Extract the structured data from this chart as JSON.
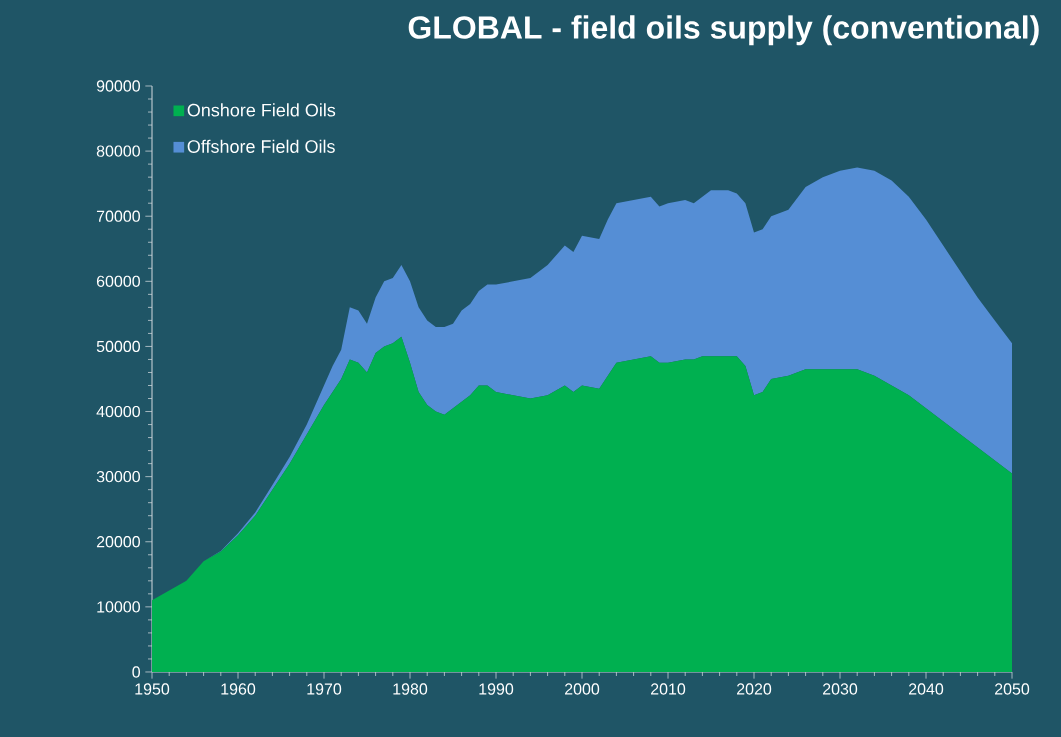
{
  "chart_data": {
    "type": "area",
    "stacked": true,
    "title": "GLOBAL - field oils supply (conventional)",
    "x": [
      1950,
      1952,
      1954,
      1956,
      1958,
      1960,
      1962,
      1964,
      1966,
      1968,
      1970,
      1971,
      1972,
      1973,
      1974,
      1975,
      1976,
      1977,
      1978,
      1979,
      1980,
      1981,
      1982,
      1983,
      1984,
      1985,
      1986,
      1987,
      1988,
      1989,
      1990,
      1992,
      1994,
      1996,
      1998,
      1999,
      2000,
      2002,
      2003,
      2004,
      2006,
      2008,
      2009,
      2010,
      2012,
      2013,
      2014,
      2015,
      2017,
      2018,
      2019,
      2020,
      2021,
      2022,
      2024,
      2026,
      2028,
      2030,
      2032,
      2034,
      2036,
      2038,
      2040,
      2042,
      2044,
      2046,
      2048,
      2050
    ],
    "series": [
      {
        "name": "Onshore Field Oils",
        "color": "#00b050",
        "values": [
          11000,
          12500,
          14000,
          17000,
          18500,
          21000,
          24000,
          28000,
          32000,
          36500,
          41000,
          43000,
          45000,
          48000,
          47500,
          46000,
          49000,
          50000,
          50500,
          51500,
          47500,
          43000,
          41000,
          40000,
          39500,
          40500,
          41500,
          42500,
          44000,
          44000,
          43000,
          42500,
          42000,
          42500,
          44000,
          43000,
          44000,
          43500,
          45500,
          47500,
          48000,
          48500,
          47500,
          47500,
          48000,
          48000,
          48500,
          48500,
          48500,
          48500,
          47000,
          42500,
          43000,
          45000,
          45500,
          46500,
          46500,
          46500,
          46500,
          45500,
          44000,
          42500,
          40500,
          38500,
          36500,
          34500,
          32500,
          30500
        ]
      },
      {
        "name": "Offshore Field Oils",
        "color": "#558ed5",
        "values": [
          0,
          0,
          0,
          0,
          100,
          300,
          500,
          700,
          1000,
          1500,
          3000,
          4000,
          4500,
          8000,
          8000,
          7500,
          8500,
          10000,
          10000,
          11000,
          12500,
          13000,
          13000,
          13000,
          13500,
          13000,
          14000,
          14000,
          14500,
          15500,
          16500,
          17500,
          18500,
          20000,
          21500,
          21500,
          23000,
          23000,
          24000,
          24500,
          24500,
          24500,
          24000,
          24500,
          24500,
          24000,
          24500,
          25500,
          25500,
          25000,
          25000,
          25000,
          25000,
          25000,
          25500,
          28000,
          29500,
          30500,
          31000,
          31500,
          31500,
          30500,
          29000,
          27000,
          25000,
          23000,
          21500,
          20000
        ]
      }
    ],
    "xlim": [
      1950,
      2050
    ],
    "ylim": [
      0,
      90000
    ],
    "xticks": [
      1950,
      1960,
      1970,
      1980,
      1990,
      2000,
      2010,
      2020,
      2030,
      2040,
      2050
    ],
    "yticks": [
      0,
      10000,
      20000,
      30000,
      40000,
      50000,
      60000,
      70000,
      80000,
      90000
    ],
    "legend": "top left"
  }
}
